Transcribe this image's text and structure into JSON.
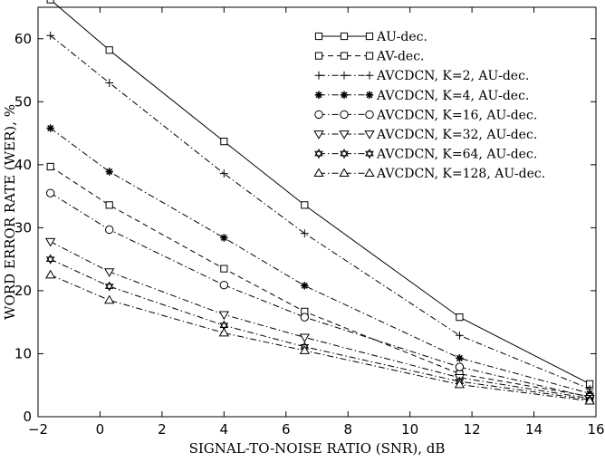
{
  "chart_data": {
    "type": "line",
    "title": "",
    "xlabel": "SIGNAL-TO-NOISE RATIO (SNR), dB",
    "ylabel": "WORD ERROR RATE (WER), %",
    "xlim": [
      -2,
      16
    ],
    "ylim": [
      0,
      65
    ],
    "xticks": [
      -2,
      0,
      2,
      4,
      6,
      8,
      10,
      12,
      14,
      16
    ],
    "yticks": [
      0,
      10,
      20,
      30,
      40,
      50,
      60
    ],
    "xtick_labels": [
      "−2",
      "0",
      "2",
      "4",
      "6",
      "8",
      "10",
      "12",
      "14",
      "16"
    ],
    "ytick_labels": [
      "0",
      "10",
      "20",
      "30",
      "40",
      "50",
      "60"
    ],
    "grid": false,
    "legend_position": "top-right",
    "x": [
      -1.6,
      0.3,
      4.0,
      6.6,
      11.6,
      15.8
    ],
    "series": [
      {
        "name": "AU-dec.",
        "marker": "square",
        "dash": "solid",
        "values": [
          66.2,
          58.2,
          43.7,
          33.6,
          15.8,
          5.2
        ]
      },
      {
        "name": "AV-dec.",
        "marker": "square",
        "dash": "dashed",
        "values": [
          39.7,
          33.6,
          23.5,
          16.7,
          6.8,
          3.2
        ]
      },
      {
        "name": "AVCDCN, K=2, AU-dec.",
        "marker": "plus",
        "dash": "dashdot",
        "values": [
          60.5,
          53.0,
          38.6,
          29.1,
          12.9,
          4.4
        ]
      },
      {
        "name": "AVCDCN, K=4, AU-dec.",
        "marker": "asterisk",
        "dash": "dashdot",
        "values": [
          45.8,
          38.9,
          28.4,
          20.8,
          9.3,
          3.7
        ]
      },
      {
        "name": "AVCDCN, K=16, AU-dec.",
        "marker": "circle",
        "dash": "dashdot",
        "values": [
          35.5,
          29.7,
          20.9,
          15.8,
          7.9,
          3.1
        ]
      },
      {
        "name": "AVCDCN, K=32, AU-dec.",
        "marker": "triangle-down",
        "dash": "dashdot",
        "values": [
          27.8,
          23.0,
          16.2,
          12.6,
          6.2,
          2.9
        ]
      },
      {
        "name": "AVCDCN, K=64, AU-dec.",
        "marker": "hexagram",
        "dash": "dashdot",
        "values": [
          25.0,
          20.7,
          14.5,
          11.1,
          5.6,
          2.7
        ]
      },
      {
        "name": "AVCDCN, K=128, AU-dec.",
        "marker": "triangle-up",
        "dash": "dashdot",
        "values": [
          22.5,
          18.5,
          13.3,
          10.5,
          5.1,
          2.5
        ]
      }
    ]
  }
}
